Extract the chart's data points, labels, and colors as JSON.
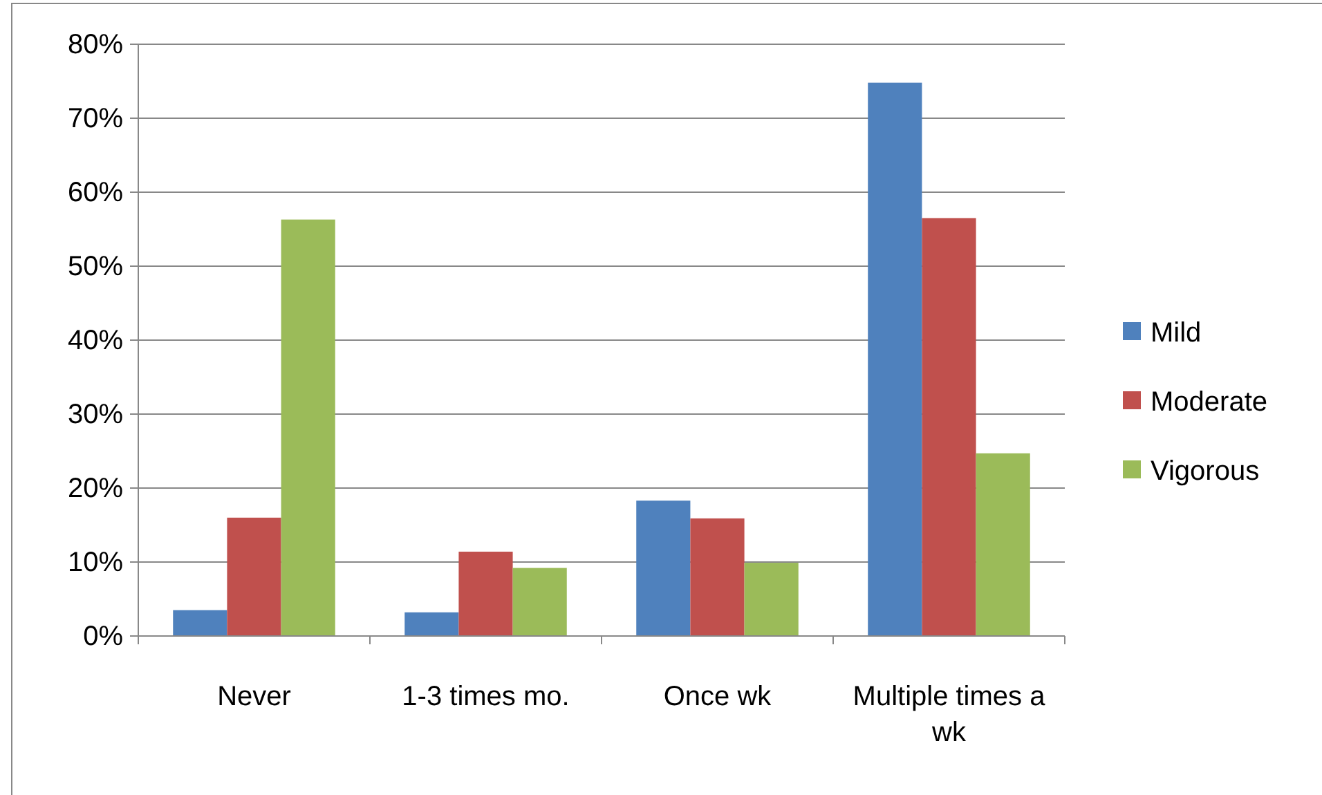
{
  "chart_data": {
    "type": "bar",
    "categories": [
      "Never",
      "1-3 times mo.",
      "Once wk",
      "Multiple times a wk"
    ],
    "series": [
      {
        "name": "Mild",
        "color": "#4f81bd",
        "values": [
          3.5,
          3.2,
          18.3,
          74.8
        ]
      },
      {
        "name": "Moderate",
        "color": "#c0504d",
        "values": [
          16,
          11.4,
          15.9,
          56.5
        ]
      },
      {
        "name": "Vigorous",
        "color": "#9bbb59",
        "values": [
          56.3,
          9.2,
          9.9,
          24.7
        ]
      }
    ],
    "ylim": [
      0,
      80
    ],
    "yticks": [
      {
        "value": 0,
        "label": "0%"
      },
      {
        "value": 10,
        "label": "10%"
      },
      {
        "value": 20,
        "label": "20%"
      },
      {
        "value": 30,
        "label": "30%"
      },
      {
        "value": 40,
        "label": "40%"
      },
      {
        "value": 50,
        "label": "50%"
      },
      {
        "value": 60,
        "label": "60%"
      },
      {
        "value": 70,
        "label": "70%"
      },
      {
        "value": 80,
        "label": "80%"
      }
    ],
    "grid": "y",
    "legend": "right"
  }
}
